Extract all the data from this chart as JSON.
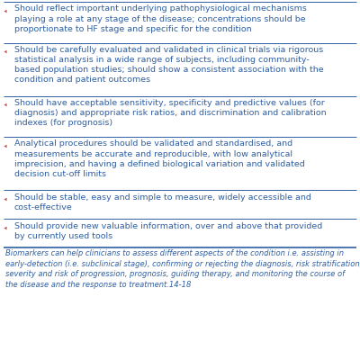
{
  "bullet_items": [
    "Should reflect important underlying pathophysiological mechanisms\nplaying a role at any stage of the disease; concentrations should be\nproportionate to HF stage and specific for the condition",
    "Should be carefully evaluated and validated in clinical trials via rigorous\nstatistical analysis in a wide range of subjects, including community-\nbased population studies; should show a consistent association with the\ncondition and patient outcomes",
    "Should have acceptable sensitivity, specificity and predictive values (for\ndiagnosis) and appropriate risk ratios, and discrimination and calibration\nindexes (for prognosis)",
    "Analytical procedures should be validated and standardised, and\nmeasurements be accurate and reproducible, with low analytical\nimprecision, and having a defined biological variation and validated\ndecision cut-off limits",
    "Should be stable, easy and simple to measure, widely accessible and\ncost-effective",
    "Should provide new valuable information, over and above that provided\nby currently used tools"
  ],
  "footer_text": "Biomarkers can help clinicians to assess different aspects of the condition i.e. assisting in\nearly-detection (i.e. subclinical stage), confirming or rejecting the diagnosis, risk stratification,\nseverity and risk of progression, prognosis, guiding therapy, and monitoring the course of\nthe disease and the response to treatment.14-18",
  "text_color": "#2e5fa3",
  "footer_color": "#2e5fa3",
  "bg_color": "#ffffff",
  "line_color": "#2e5fa3",
  "bullet_marker_color": "#c0504d",
  "font_size": 6.8,
  "footer_font_size": 6.0,
  "line_widths": [
    0.7,
    0.7,
    0.7,
    0.7,
    0.7,
    0.7,
    0.7,
    1.2
  ]
}
